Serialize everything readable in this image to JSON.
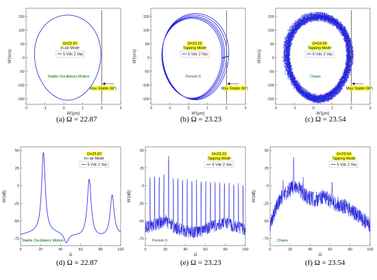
{
  "chart_data": [
    {
      "type": "line",
      "id": "a",
      "caption": "(a) Ω = 22.87",
      "xlabel": "W′(μm)",
      "ylabel": "Ẇ′(m/s)",
      "xlim": [
        -2,
        3
      ],
      "ylim": [
        -170,
        180
      ],
      "xticks": [
        -2,
        -1,
        0,
        1,
        2,
        3
      ],
      "yticks": [
        -150,
        -100,
        -50,
        0,
        50,
        100,
        150
      ],
      "legend": {
        "title": "Ω=22.87",
        "mode": "In-air Mode",
        "series": "5 Vdc 2 Vac"
      },
      "regime": "Stable Oscillatory Motion",
      "marker": {
        "label": "Max Stable (W′)",
        "x": 2.0
      },
      "orbit": {
        "cx": 0.2,
        "cy": 0,
        "rx": 1.75,
        "ry": 155,
        "loops": 1
      }
    },
    {
      "type": "line",
      "id": "b",
      "caption": "(b) Ω = 23.23",
      "xlabel": "W′(μm)",
      "ylabel": "Ẇ′(m/s)",
      "xlim": [
        -2,
        3
      ],
      "ylim": [
        -170,
        180
      ],
      "xticks": [
        -2,
        -1,
        0,
        1,
        2,
        3
      ],
      "yticks": [
        -150,
        -100,
        -50,
        0,
        50,
        100,
        150
      ],
      "legend": {
        "title": "Ω=23.23",
        "mode": "Tapping Mode",
        "series": "5 Vdc 2 Vac"
      },
      "regime": "Period−5",
      "marker": {
        "label": "Max Stable (W′)",
        "x": 2.0
      },
      "orbit": {
        "cx": 0.25,
        "cy": 0,
        "rx": 1.65,
        "ry": 150,
        "loops": 5
      }
    },
    {
      "type": "line",
      "id": "c",
      "caption": "(c) Ω = 23.54",
      "xlabel": "W′(μm)",
      "ylabel": "Ẇ′(m/s)",
      "xlim": [
        -2,
        3
      ],
      "ylim": [
        -170,
        180
      ],
      "xticks": [
        -2,
        -1,
        0,
        1,
        2,
        3
      ],
      "yticks": [
        -150,
        -100,
        -50,
        0,
        50,
        100,
        150
      ],
      "legend": {
        "title": "Ω=23.54",
        "mode": "Tapping Mode",
        "series": "5 Vdc 2 Vac"
      },
      "regime": "Chaos",
      "marker": {
        "label": "Max Stable (W′)",
        "x": 2.0
      },
      "orbit": {
        "cx": 0.25,
        "cy": 0,
        "rx": 1.65,
        "ry": 150,
        "loops": 24
      }
    },
    {
      "type": "line",
      "id": "d",
      "caption": "(d) Ω = 22.87",
      "xlabel": "Ω",
      "ylabel": "W′(dB)",
      "xlim": [
        0,
        100
      ],
      "ylim": [
        -85,
        55
      ],
      "xticks": [
        0,
        20,
        40,
        60,
        80,
        100
      ],
      "yticks": [
        -75,
        -50,
        -25,
        0,
        25,
        50
      ],
      "legend": {
        "title": "Ω=22.87",
        "mode": "In−air Mode",
        "series": "5 Vdc 2 Vac"
      },
      "regime": "Stable Oscillatory Motion",
      "spectrum": {
        "kind": "peaks",
        "base": -70,
        "peaks": [
          {
            "x": 22.87,
            "y": 43,
            "w": 0.55
          },
          {
            "x": 45.74,
            "y": -84,
            "w": 0.7,
            "dip": true
          },
          {
            "x": 68.6,
            "y": 12,
            "w": 0.6
          },
          {
            "x": 91.5,
            "y": -12,
            "w": 0.6
          }
        ]
      }
    },
    {
      "type": "line",
      "id": "e",
      "caption": "(e) Ω = 23.23",
      "xlabel": "Ω",
      "ylabel": "W′(dB)",
      "xlim": [
        0,
        100
      ],
      "ylim": [
        -85,
        55
      ],
      "xticks": [
        0,
        20,
        40,
        60,
        80,
        100
      ],
      "yticks": [
        -75,
        -50,
        -25,
        0,
        25,
        50
      ],
      "legend": {
        "title": "Ω=23.23",
        "mode": "Tapping Mode",
        "series": "5 Vdc 2 Vac"
      },
      "regime": "Period−5",
      "spectrum": {
        "kind": "comb",
        "base": -60,
        "spacing": 4.65,
        "main": {
          "x": 23.23,
          "y": 42
        },
        "comb_top": 12,
        "comb_decay": 0.14
      }
    },
    {
      "type": "line",
      "id": "f",
      "caption": "(f) Ω = 23.54",
      "xlabel": "Ω",
      "ylabel": "W′(dB)",
      "xlim": [
        0,
        100
      ],
      "ylim": [
        -85,
        55
      ],
      "xticks": [
        0,
        20,
        40,
        60,
        80,
        100
      ],
      "yticks": [
        -75,
        -50,
        -25,
        0,
        25,
        50
      ],
      "legend": {
        "title": "Ω=23.54",
        "mode": "Tapping Mode",
        "series": "5 Vdc 2 Vac"
      },
      "regime": "Chaos",
      "spectrum": {
        "kind": "noise",
        "envelope": [
          [
            0,
            -55
          ],
          [
            5,
            -35
          ],
          [
            12,
            -15
          ],
          [
            20,
            -5
          ],
          [
            27,
            0
          ],
          [
            35,
            -15
          ],
          [
            45,
            -20
          ],
          [
            55,
            -15
          ],
          [
            65,
            -25
          ],
          [
            75,
            -30
          ],
          [
            85,
            -40
          ],
          [
            100,
            -55
          ]
        ],
        "spikes": [
          {
            "x": 23.54,
            "y": 42
          },
          {
            "x": 33,
            "y": 12
          },
          {
            "x": 13,
            "y": 8
          },
          {
            "x": 62,
            "y": 5
          }
        ]
      }
    }
  ],
  "colors": {
    "line": "#2222dd",
    "annotation_bg": "#ffff33",
    "regime_text": "#006400",
    "frame": "#555555"
  },
  "icons": {
    "legend_line": "legend-line-icon",
    "arrow": "arrow-left-icon"
  }
}
